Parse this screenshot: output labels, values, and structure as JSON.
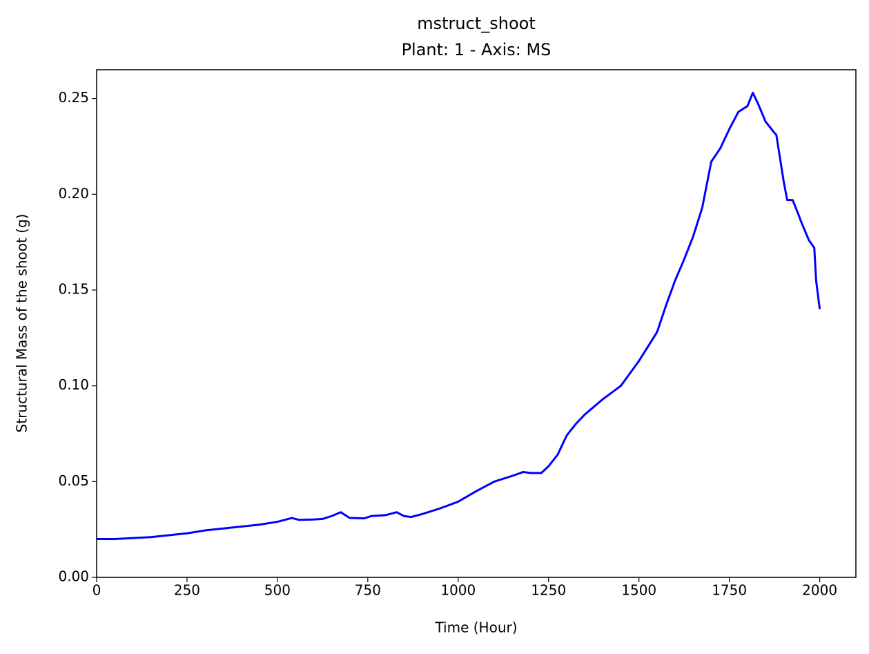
{
  "chart_data": {
    "type": "line",
    "title": "mstruct_shoot",
    "subtitle": "Plant: 1 - Axis: MS",
    "x_label": "Time (Hour)",
    "y_label": "Structural Mass of the shoot (g)",
    "xlim": [
      0,
      2100
    ],
    "ylim": [
      0,
      0.265
    ],
    "xticks": [
      0,
      250,
      500,
      750,
      1000,
      1250,
      1500,
      1750,
      2000
    ],
    "yticks": [
      {
        "value": 0,
        "label": "0.00"
      },
      {
        "value": 0.05,
        "label": "0.05"
      },
      {
        "value": 0.1,
        "label": "0.10"
      },
      {
        "value": 0.15,
        "label": "0.15"
      },
      {
        "value": 0.2,
        "label": "0.20"
      },
      {
        "value": 0.25,
        "label": "0.25"
      }
    ],
    "x": [
      0,
      50,
      100,
      150,
      200,
      250,
      300,
      350,
      400,
      450,
      500,
      520,
      540,
      560,
      600,
      625,
      650,
      675,
      700,
      740,
      760,
      800,
      830,
      850,
      870,
      900,
      950,
      1000,
      1050,
      1100,
      1150,
      1180,
      1200,
      1230,
      1250,
      1275,
      1300,
      1325,
      1350,
      1400,
      1450,
      1500,
      1550,
      1575,
      1600,
      1625,
      1650,
      1675,
      1700,
      1725,
      1750,
      1775,
      1800,
      1815,
      1830,
      1850,
      1875,
      1880,
      1900,
      1910,
      1925,
      1940,
      1950,
      1970,
      1985,
      1990,
      2000
    ],
    "series": [
      {
        "color": "#0000ff",
        "values": [
          0.02,
          0.02,
          0.0205,
          0.021,
          0.022,
          0.023,
          0.0245,
          0.0255,
          0.0265,
          0.0275,
          0.029,
          0.03,
          0.031,
          0.03,
          0.0302,
          0.0305,
          0.032,
          0.034,
          0.031,
          0.0308,
          0.032,
          0.0325,
          0.034,
          0.032,
          0.0315,
          0.033,
          0.036,
          0.0395,
          0.045,
          0.05,
          0.053,
          0.055,
          0.0545,
          0.0545,
          0.058,
          0.064,
          0.074,
          0.08,
          0.085,
          0.093,
          0.1,
          0.113,
          0.128,
          0.142,
          0.155,
          0.166,
          0.178,
          0.193,
          0.217,
          0.224,
          0.234,
          0.243,
          0.246,
          0.253,
          0.247,
          0.238,
          0.232,
          0.231,
          0.207,
          0.197,
          0.197,
          0.19,
          0.185,
          0.176,
          0.172,
          0.155,
          0.14
        ]
      }
    ]
  }
}
